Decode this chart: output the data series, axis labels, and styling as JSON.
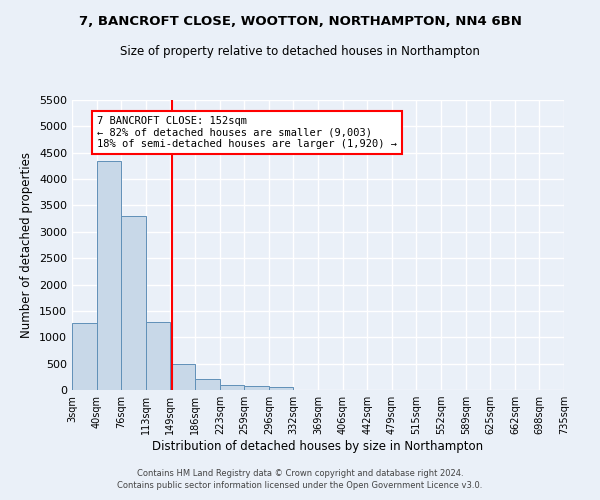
{
  "title1": "7, BANCROFT CLOSE, WOOTTON, NORTHAMPTON, NN4 6BN",
  "title2": "Size of property relative to detached houses in Northampton",
  "xlabel": "Distribution of detached houses by size in Northampton",
  "ylabel": "Number of detached properties",
  "bin_edges": [
    3,
    40,
    76,
    113,
    149,
    186,
    223,
    259,
    296,
    332,
    369,
    406,
    442,
    479,
    515,
    552,
    589,
    625,
    662,
    698,
    735
  ],
  "bar_heights": [
    1270,
    4350,
    3300,
    1290,
    490,
    210,
    90,
    70,
    60,
    0,
    0,
    0,
    0,
    0,
    0,
    0,
    0,
    0,
    0,
    0
  ],
  "bar_color": "#c8d8e8",
  "bar_edge_color": "#6090b8",
  "property_line_x": 152,
  "property_line_color": "red",
  "annotation_text": "7 BANCROFT CLOSE: 152sqm\n← 82% of detached houses are smaller (9,003)\n18% of semi-detached houses are larger (1,920) →",
  "annotation_box_color": "white",
  "annotation_edge_color": "red",
  "ylim": [
    0,
    5500
  ],
  "yticks": [
    0,
    500,
    1000,
    1500,
    2000,
    2500,
    3000,
    3500,
    4000,
    4500,
    5000,
    5500
  ],
  "tick_labels": [
    "3sqm",
    "40sqm",
    "76sqm",
    "113sqm",
    "149sqm",
    "186sqm",
    "223sqm",
    "259sqm",
    "296sqm",
    "332sqm",
    "369sqm",
    "406sqm",
    "442sqm",
    "479sqm",
    "515sqm",
    "552sqm",
    "589sqm",
    "625sqm",
    "662sqm",
    "698sqm",
    "735sqm"
  ],
  "footer1": "Contains HM Land Registry data © Crown copyright and database right 2024.",
  "footer2": "Contains public sector information licensed under the Open Government Licence v3.0.",
  "bg_color": "#eaf0f8",
  "grid_color": "white",
  "fig_width": 6.0,
  "fig_height": 5.0,
  "dpi": 100
}
